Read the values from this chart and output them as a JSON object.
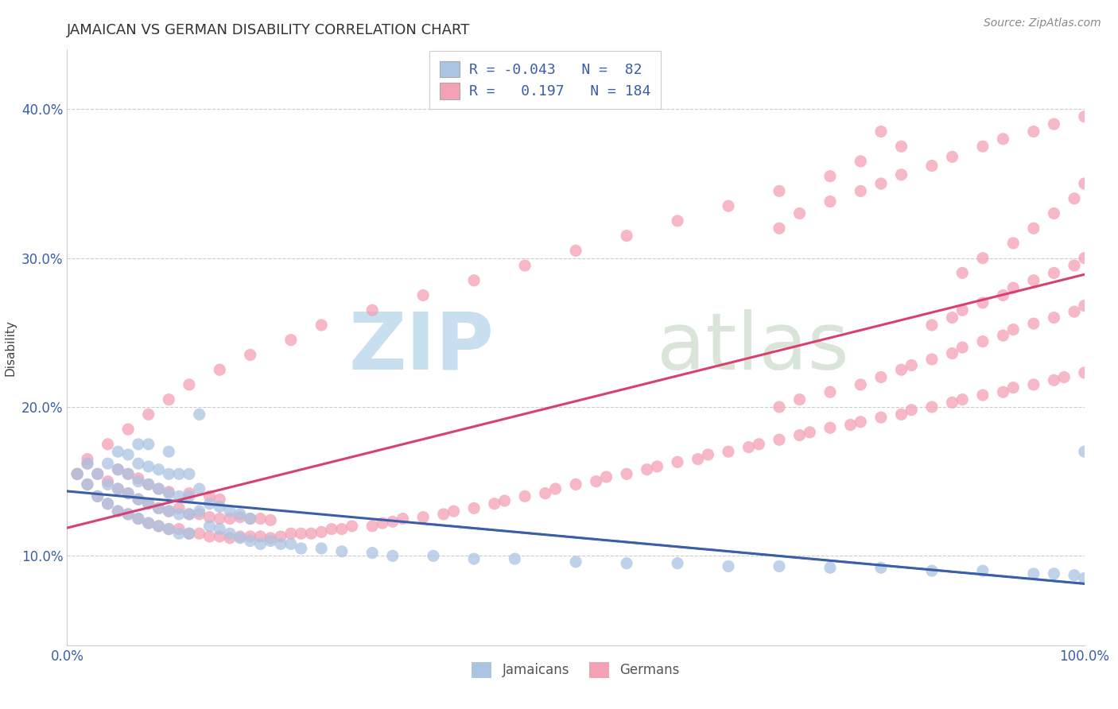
{
  "title": "JAMAICAN VS GERMAN DISABILITY CORRELATION CHART",
  "source": "Source: ZipAtlas.com",
  "ylabel": "Disability",
  "xlim": [
    0.0,
    1.0
  ],
  "ylim": [
    0.04,
    0.44
  ],
  "yticks": [
    0.1,
    0.2,
    0.3,
    0.4
  ],
  "ytick_labels": [
    "10.0%",
    "20.0%",
    "30.0%",
    "40.0%"
  ],
  "xticks": [
    0.0,
    1.0
  ],
  "xtick_labels": [
    "0.0%",
    "100.0%"
  ],
  "blue_color": "#aac4e2",
  "pink_color": "#f4a0b5",
  "blue_line_color": "#3a5ea8",
  "pink_line_color": "#d94070",
  "blue_scatter_x": [
    0.01,
    0.02,
    0.02,
    0.03,
    0.03,
    0.04,
    0.04,
    0.04,
    0.05,
    0.05,
    0.05,
    0.05,
    0.06,
    0.06,
    0.06,
    0.06,
    0.07,
    0.07,
    0.07,
    0.07,
    0.07,
    0.08,
    0.08,
    0.08,
    0.08,
    0.08,
    0.09,
    0.09,
    0.09,
    0.09,
    0.1,
    0.1,
    0.1,
    0.1,
    0.1,
    0.11,
    0.11,
    0.11,
    0.11,
    0.12,
    0.12,
    0.12,
    0.12,
    0.13,
    0.13,
    0.13,
    0.14,
    0.14,
    0.15,
    0.15,
    0.16,
    0.16,
    0.17,
    0.17,
    0.18,
    0.18,
    0.19,
    0.2,
    0.21,
    0.22,
    0.23,
    0.25,
    0.27,
    0.3,
    0.32,
    0.36,
    0.4,
    0.44,
    0.5,
    0.55,
    0.6,
    0.65,
    0.7,
    0.75,
    0.8,
    0.85,
    0.9,
    0.95,
    0.97,
    0.99,
    1.0,
    1.0
  ],
  "blue_scatter_y": [
    0.155,
    0.148,
    0.162,
    0.14,
    0.155,
    0.135,
    0.148,
    0.162,
    0.13,
    0.145,
    0.158,
    0.17,
    0.128,
    0.142,
    0.155,
    0.168,
    0.125,
    0.138,
    0.15,
    0.162,
    0.175,
    0.122,
    0.135,
    0.148,
    0.16,
    0.175,
    0.12,
    0.132,
    0.145,
    0.158,
    0.118,
    0.13,
    0.142,
    0.155,
    0.17,
    0.115,
    0.128,
    0.14,
    0.155,
    0.115,
    0.128,
    0.14,
    0.155,
    0.195,
    0.13,
    0.145,
    0.12,
    0.135,
    0.118,
    0.133,
    0.115,
    0.13,
    0.112,
    0.128,
    0.11,
    0.125,
    0.108,
    0.11,
    0.108,
    0.108,
    0.105,
    0.105,
    0.103,
    0.102,
    0.1,
    0.1,
    0.098,
    0.098,
    0.096,
    0.095,
    0.095,
    0.093,
    0.093,
    0.092,
    0.092,
    0.09,
    0.09,
    0.088,
    0.088,
    0.087,
    0.085,
    0.17
  ],
  "pink_scatter_x": [
    0.01,
    0.02,
    0.02,
    0.03,
    0.03,
    0.04,
    0.04,
    0.05,
    0.05,
    0.05,
    0.06,
    0.06,
    0.06,
    0.07,
    0.07,
    0.07,
    0.08,
    0.08,
    0.08,
    0.09,
    0.09,
    0.09,
    0.1,
    0.1,
    0.1,
    0.11,
    0.11,
    0.12,
    0.12,
    0.12,
    0.13,
    0.13,
    0.14,
    0.14,
    0.14,
    0.15,
    0.15,
    0.15,
    0.16,
    0.16,
    0.17,
    0.17,
    0.18,
    0.18,
    0.19,
    0.19,
    0.2,
    0.2,
    0.21,
    0.22,
    0.23,
    0.24,
    0.25,
    0.26,
    0.27,
    0.28,
    0.3,
    0.31,
    0.32,
    0.33,
    0.35,
    0.37,
    0.38,
    0.4,
    0.42,
    0.43,
    0.45,
    0.47,
    0.48,
    0.5,
    0.52,
    0.53,
    0.55,
    0.57,
    0.58,
    0.6,
    0.62,
    0.63,
    0.65,
    0.67,
    0.68,
    0.7,
    0.72,
    0.73,
    0.75,
    0.77,
    0.78,
    0.8,
    0.82,
    0.83,
    0.85,
    0.87,
    0.88,
    0.9,
    0.92,
    0.93,
    0.95,
    0.97,
    0.98,
    1.0,
    0.7,
    0.72,
    0.75,
    0.78,
    0.8,
    0.82,
    0.83,
    0.85,
    0.87,
    0.88,
    0.9,
    0.92,
    0.93,
    0.95,
    0.97,
    0.99,
    1.0,
    0.85,
    0.87,
    0.88,
    0.9,
    0.92,
    0.93,
    0.95,
    0.97,
    0.99,
    1.0,
    0.88,
    0.9,
    0.93,
    0.95,
    0.97,
    0.99,
    1.0,
    0.8,
    0.82,
    0.78,
    0.75,
    0.7,
    0.65,
    0.6,
    0.55,
    0.5,
    0.45,
    0.4,
    0.35,
    0.3,
    0.25,
    0.22,
    0.18,
    0.15,
    0.12,
    0.1,
    0.08,
    0.06,
    0.04,
    0.02,
    0.01,
    0.7,
    0.72,
    0.75,
    0.78,
    0.8,
    0.82,
    0.85,
    0.87,
    0.9,
    0.92,
    0.95,
    0.97,
    1.0
  ],
  "pink_scatter_y": [
    0.155,
    0.148,
    0.162,
    0.14,
    0.155,
    0.135,
    0.15,
    0.13,
    0.145,
    0.158,
    0.128,
    0.142,
    0.155,
    0.125,
    0.138,
    0.152,
    0.122,
    0.135,
    0.148,
    0.12,
    0.132,
    0.145,
    0.118,
    0.13,
    0.143,
    0.118,
    0.132,
    0.115,
    0.128,
    0.142,
    0.115,
    0.128,
    0.113,
    0.126,
    0.14,
    0.113,
    0.125,
    0.138,
    0.112,
    0.125,
    0.113,
    0.126,
    0.113,
    0.125,
    0.113,
    0.125,
    0.112,
    0.124,
    0.113,
    0.115,
    0.115,
    0.115,
    0.116,
    0.118,
    0.118,
    0.12,
    0.12,
    0.122,
    0.123,
    0.125,
    0.126,
    0.128,
    0.13,
    0.132,
    0.135,
    0.137,
    0.14,
    0.142,
    0.145,
    0.148,
    0.15,
    0.153,
    0.155,
    0.158,
    0.16,
    0.163,
    0.165,
    0.168,
    0.17,
    0.173,
    0.175,
    0.178,
    0.181,
    0.183,
    0.186,
    0.188,
    0.19,
    0.193,
    0.195,
    0.198,
    0.2,
    0.203,
    0.205,
    0.208,
    0.21,
    0.213,
    0.215,
    0.218,
    0.22,
    0.223,
    0.2,
    0.205,
    0.21,
    0.215,
    0.22,
    0.225,
    0.228,
    0.232,
    0.236,
    0.24,
    0.244,
    0.248,
    0.252,
    0.256,
    0.26,
    0.264,
    0.268,
    0.255,
    0.26,
    0.265,
    0.27,
    0.275,
    0.28,
    0.285,
    0.29,
    0.295,
    0.3,
    0.29,
    0.3,
    0.31,
    0.32,
    0.33,
    0.34,
    0.35,
    0.385,
    0.375,
    0.365,
    0.355,
    0.345,
    0.335,
    0.325,
    0.315,
    0.305,
    0.295,
    0.285,
    0.275,
    0.265,
    0.255,
    0.245,
    0.235,
    0.225,
    0.215,
    0.205,
    0.195,
    0.185,
    0.175,
    0.165,
    0.155,
    0.32,
    0.33,
    0.338,
    0.345,
    0.35,
    0.356,
    0.362,
    0.368,
    0.375,
    0.38,
    0.385,
    0.39,
    0.395
  ]
}
